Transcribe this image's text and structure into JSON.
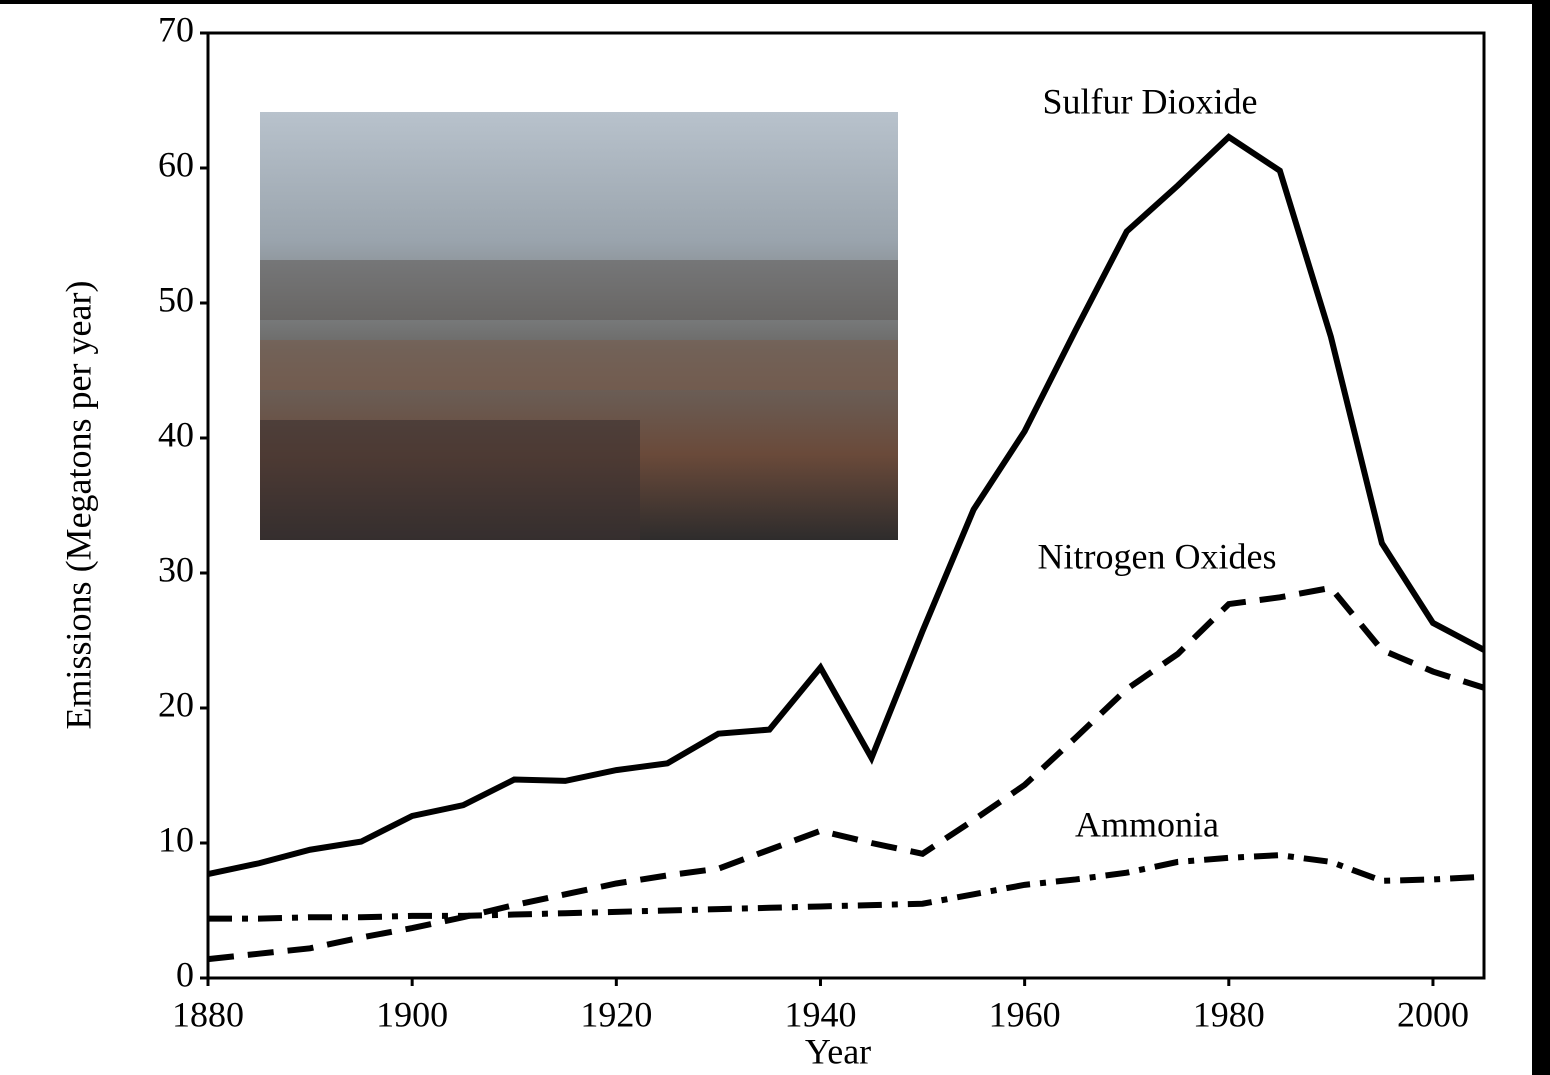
{
  "chart_data": {
    "type": "line",
    "x_label": "Year",
    "y_label": "Emissions (Megatons per year)",
    "x": [
      1880,
      1885,
      1890,
      1895,
      1900,
      1905,
      1910,
      1915,
      1920,
      1925,
      1930,
      1935,
      1940,
      1945,
      1950,
      1955,
      1960,
      1965,
      1970,
      1975,
      1980,
      1985,
      1990,
      1995,
      2000,
      2005
    ],
    "series": [
      {
        "name": "Sulfur Dioxide",
        "color": "#000000",
        "dash": "solid",
        "values": [
          7.7,
          8.5,
          9.5,
          10.1,
          12,
          12.8,
          14.7,
          14.6,
          15.4,
          15.9,
          18.1,
          18.4,
          23,
          16.3,
          25.7,
          34.7,
          40.5,
          48,
          55.3,
          58.7,
          62.3,
          59.8,
          47.5,
          32.2,
          26.3,
          24.3
        ]
      },
      {
        "name": "Nitrogen Oxides",
        "color": "#000000",
        "dash": "dashed",
        "values": [
          1.4,
          1.8,
          2.2,
          3,
          3.7,
          4.5,
          5.4,
          6.2,
          7,
          7.6,
          8.1,
          9.5,
          10.9,
          10,
          9.2,
          11.7,
          14.3,
          17.8,
          21.4,
          24,
          27.7,
          28.2,
          28.9,
          24.3,
          22.7,
          21.5
        ]
      },
      {
        "name": "Ammonia",
        "color": "#000000",
        "dash": "dashdot",
        "values": [
          4.4,
          4.4,
          4.5,
          4.5,
          4.6,
          4.6,
          4.7,
          4.8,
          4.9,
          5,
          5.1,
          5.2,
          5.3,
          5.4,
          5.5,
          6.2,
          6.9,
          7.3,
          7.8,
          8.6,
          8.9,
          9.1,
          8.6,
          7.2,
          7.3,
          7.5
        ]
      }
    ],
    "xlim": [
      1880,
      2005
    ],
    "xticks": [
      1880,
      1900,
      1920,
      1940,
      1960,
      1980,
      2000
    ],
    "ylim": [
      0,
      70
    ],
    "yticks": [
      0,
      10,
      20,
      30,
      40,
      50,
      60,
      70
    ],
    "grid": false
  }
}
